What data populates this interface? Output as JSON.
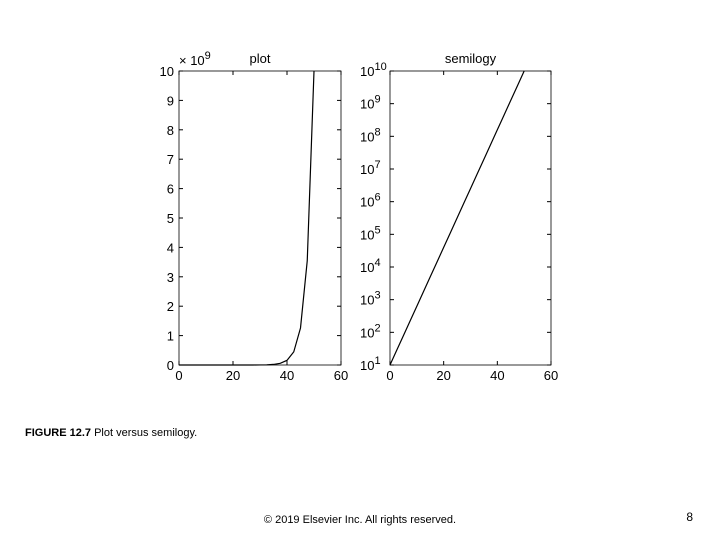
{
  "chart_data": [
    {
      "type": "line",
      "title": "plot",
      "multiplier": {
        "label": "× 10",
        "exponent": "9"
      },
      "x": [
        0,
        2.5,
        5,
        7.5,
        10,
        12.5,
        15,
        17.5,
        20,
        22.5,
        25,
        27.5,
        30,
        32.5,
        35,
        37.5,
        40,
        42.5,
        45,
        47.5,
        50
      ],
      "values": [
        10,
        28.18,
        79.43,
        223.87,
        630.96,
        1778.28,
        5011.87,
        14125.38,
        39810.72,
        112201.85,
        316227.77,
        891250.94,
        2511886.43,
        7079457.84,
        19952623.15,
        56234132.52,
        158489319.25,
        446683592.15,
        1258925411.79,
        3548133892.34,
        10000000000
      ],
      "color": "#000000",
      "xlim": [
        0,
        60
      ],
      "xticks": [
        0,
        20,
        40,
        60
      ],
      "ylim": [
        0,
        10000000000
      ],
      "yticks": [
        {
          "value": 0,
          "label": "0"
        },
        {
          "value": 1000000000,
          "label": "1"
        },
        {
          "value": 2000000000,
          "label": "2"
        },
        {
          "value": 3000000000,
          "label": "3"
        },
        {
          "value": 4000000000,
          "label": "4"
        },
        {
          "value": 5000000000,
          "label": "5"
        },
        {
          "value": 6000000000,
          "label": "6"
        },
        {
          "value": 7000000000,
          "label": "7"
        },
        {
          "value": 8000000000,
          "label": "8"
        },
        {
          "value": 9000000000,
          "label": "9"
        },
        {
          "value": 10000000000,
          "label": "10"
        }
      ]
    },
    {
      "type": "line",
      "title": "semilogy",
      "yscale": "log",
      "x": [
        0,
        2.5,
        5,
        7.5,
        10,
        12.5,
        15,
        17.5,
        20,
        22.5,
        25,
        27.5,
        30,
        32.5,
        35,
        37.5,
        40,
        42.5,
        45,
        47.5,
        50
      ],
      "values": [
        10,
        28.18,
        79.43,
        223.87,
        630.96,
        1778.28,
        5011.87,
        14125.38,
        39810.72,
        112201.85,
        316227.77,
        891250.94,
        2511886.43,
        7079457.84,
        19952623.15,
        56234132.52,
        158489319.25,
        446683592.15,
        1258925411.79,
        3548133892.34,
        10000000000
      ],
      "color": "#000000",
      "xlim": [
        0,
        60
      ],
      "xticks": [
        0,
        20,
        40,
        60
      ],
      "ylim": [
        10,
        10000000000
      ],
      "yticks": [
        {
          "value": 10,
          "label": "10",
          "exponent": "1"
        },
        {
          "value": 100,
          "label": "10",
          "exponent": "2"
        },
        {
          "value": 1000,
          "label": "10",
          "exponent": "3"
        },
        {
          "value": 10000,
          "label": "10",
          "exponent": "4"
        },
        {
          "value": 100000,
          "label": "10",
          "exponent": "5"
        },
        {
          "value": 1000000,
          "label": "10",
          "exponent": "6"
        },
        {
          "value": 10000000,
          "label": "10",
          "exponent": "7"
        },
        {
          "value": 100000000,
          "label": "10",
          "exponent": "8"
        },
        {
          "value": 1000000000,
          "label": "10",
          "exponent": "9"
        },
        {
          "value": 10000000000,
          "label": "10",
          "exponent": "10"
        }
      ]
    }
  ],
  "caption": {
    "label": "FIGURE 12.7",
    "text": "Plot versus semilogy."
  },
  "footer": "© 2019 Elsevier Inc. All rights reserved.",
  "page_number": "8"
}
